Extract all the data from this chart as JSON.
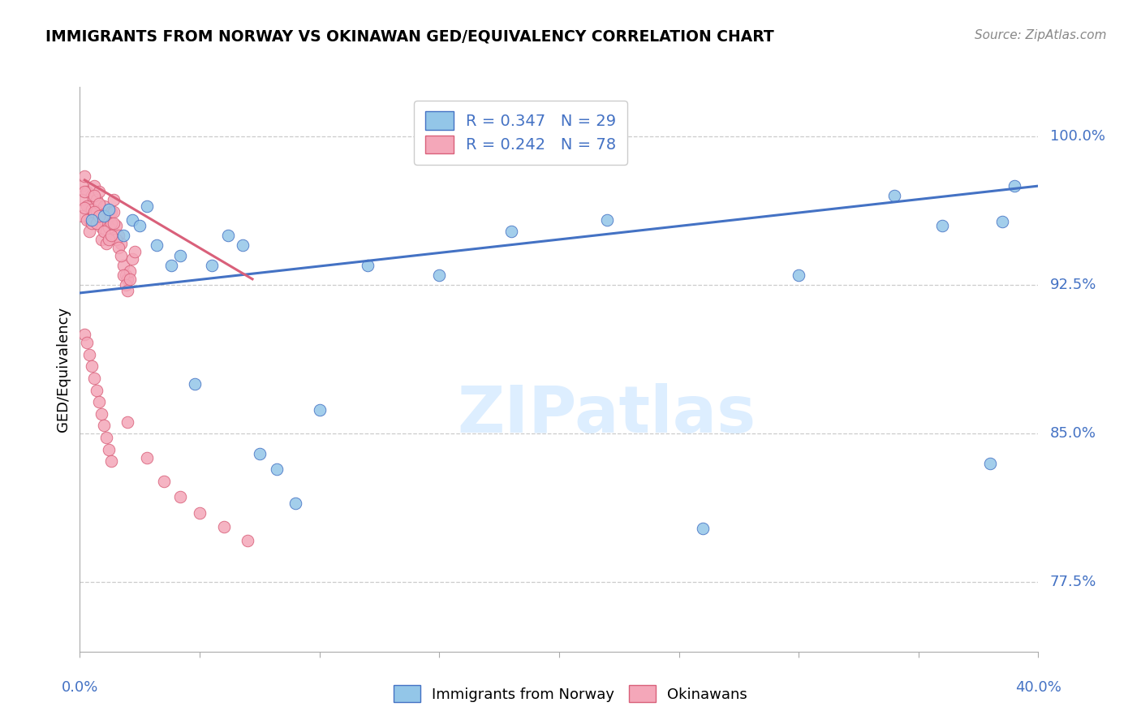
{
  "title": "IMMIGRANTS FROM NORWAY VS OKINAWAN GED/EQUIVALENCY CORRELATION CHART",
  "source": "Source: ZipAtlas.com",
  "ylabel": "GED/Equivalency",
  "ytick_labels": [
    "77.5%",
    "85.0%",
    "92.5%",
    "100.0%"
  ],
  "ytick_values": [
    0.775,
    0.85,
    0.925,
    1.0
  ],
  "xlim": [
    0.0,
    0.4
  ],
  "ylim": [
    0.74,
    1.025
  ],
  "blue_color": "#93c6e8",
  "pink_color": "#f4a7b9",
  "blue_line_color": "#4472c4",
  "pink_line_color": "#d9607a",
  "text_color": "#4472c4",
  "watermark_color": "#ddeeff",
  "norway_line_x": [
    0.0,
    0.4
  ],
  "norway_line_y": [
    0.921,
    0.975
  ],
  "pink_line_x": [
    0.002,
    0.072
  ],
  "pink_line_y": [
    0.978,
    0.928
  ],
  "norway_points_x": [
    0.005,
    0.01,
    0.012,
    0.018,
    0.022,
    0.025,
    0.028,
    0.032,
    0.038,
    0.042,
    0.048,
    0.055,
    0.062,
    0.068,
    0.075,
    0.082,
    0.09,
    0.1,
    0.12,
    0.15,
    0.18,
    0.22,
    0.26,
    0.3,
    0.34,
    0.36,
    0.38,
    0.385,
    0.39
  ],
  "norway_points_y": [
    0.958,
    0.96,
    0.963,
    0.95,
    0.958,
    0.955,
    0.965,
    0.945,
    0.935,
    0.94,
    0.875,
    0.935,
    0.95,
    0.945,
    0.84,
    0.832,
    0.815,
    0.862,
    0.935,
    0.93,
    0.952,
    0.958,
    0.802,
    0.93,
    0.97,
    0.955,
    0.835,
    0.957,
    0.975
  ],
  "okinawa_points_x": [
    0.001,
    0.002,
    0.003,
    0.004,
    0.005,
    0.006,
    0.007,
    0.008,
    0.009,
    0.01,
    0.011,
    0.012,
    0.013,
    0.014,
    0.015,
    0.016,
    0.017,
    0.018,
    0.019,
    0.02,
    0.021,
    0.022,
    0.023,
    0.001,
    0.002,
    0.003,
    0.004,
    0.005,
    0.006,
    0.007,
    0.008,
    0.009,
    0.01,
    0.011,
    0.012,
    0.013,
    0.014,
    0.015,
    0.016,
    0.017,
    0.018,
    0.019,
    0.02,
    0.021,
    0.001,
    0.002,
    0.003,
    0.004,
    0.005,
    0.006,
    0.007,
    0.008,
    0.009,
    0.01,
    0.011,
    0.012,
    0.013,
    0.014,
    0.002,
    0.003,
    0.004,
    0.005,
    0.006,
    0.007,
    0.008,
    0.009,
    0.01,
    0.011,
    0.012,
    0.013,
    0.02,
    0.028,
    0.035,
    0.042,
    0.05,
    0.06,
    0.07
  ],
  "okinawa_points_y": [
    0.975,
    0.98,
    0.972,
    0.965,
    0.97,
    0.975,
    0.968,
    0.972,
    0.96,
    0.965,
    0.958,
    0.96,
    0.962,
    0.968,
    0.955,
    0.95,
    0.946,
    0.935,
    0.93,
    0.928,
    0.932,
    0.938,
    0.942,
    0.968,
    0.972,
    0.965,
    0.958,
    0.963,
    0.97,
    0.962,
    0.966,
    0.954,
    0.958,
    0.952,
    0.954,
    0.956,
    0.962,
    0.948,
    0.944,
    0.94,
    0.93,
    0.925,
    0.922,
    0.928,
    0.96,
    0.964,
    0.958,
    0.952,
    0.956,
    0.962,
    0.956,
    0.96,
    0.948,
    0.952,
    0.946,
    0.948,
    0.95,
    0.956,
    0.9,
    0.896,
    0.89,
    0.884,
    0.878,
    0.872,
    0.866,
    0.86,
    0.854,
    0.848,
    0.842,
    0.836,
    0.856,
    0.838,
    0.826,
    0.818,
    0.81,
    0.803,
    0.796
  ]
}
